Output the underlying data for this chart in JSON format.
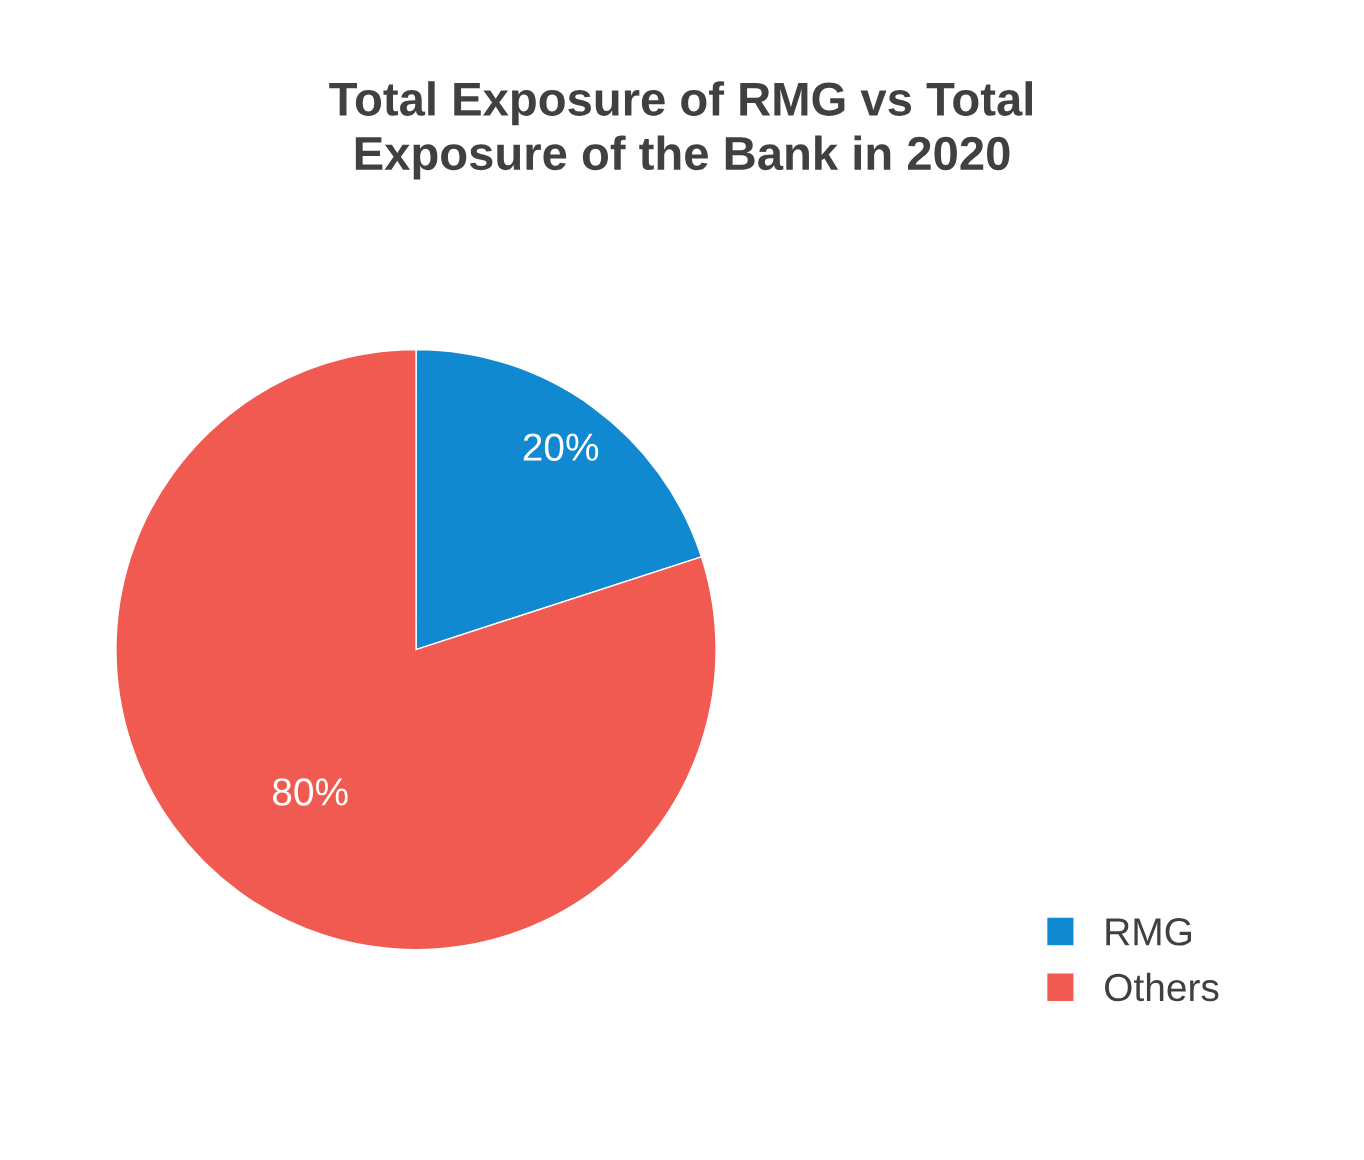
{
  "chart_data": {
    "type": "pie",
    "title": "Total Exposure of RMG vs Total\nExposure of the Bank in 2020",
    "categories": [
      "RMG",
      "Others"
    ],
    "values": [
      20,
      80
    ],
    "colors": [
      "#1089d0",
      "#f05a50"
    ],
    "value_labels": [
      "20%",
      "80%"
    ],
    "legend": "bottom right"
  }
}
